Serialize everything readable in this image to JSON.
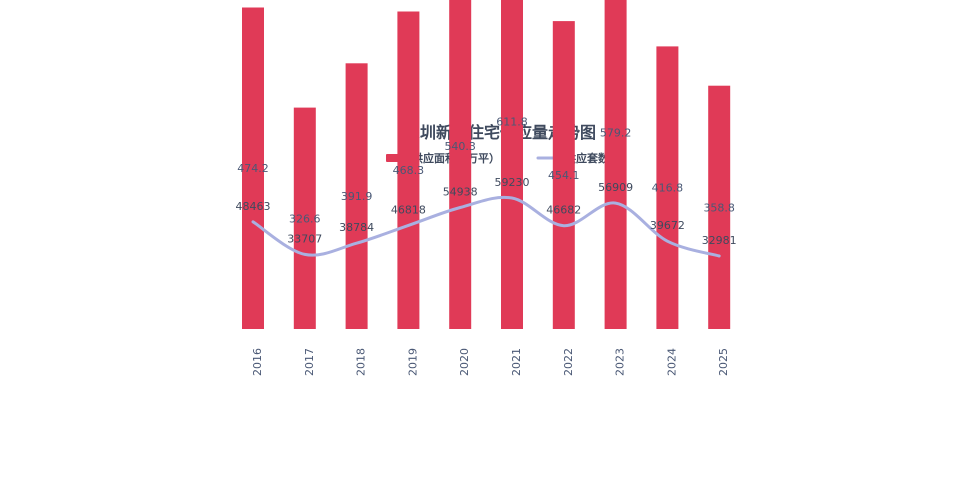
{
  "chart_data": {
    "type": "bar",
    "title": "深圳新房住宅供应量走势图",
    "categories": [
      "2016",
      "2017",
      "2018",
      "2019",
      "2020",
      "2021",
      "2022",
      "2023",
      "2024",
      "2025"
    ],
    "series": [
      {
        "name": "供应面积（万平）",
        "kind": "bar",
        "color": "#e03a57",
        "values": [
          474.2,
          326.6,
          391.9,
          468.3,
          540.3,
          611.8,
          454.1,
          579.2,
          416.8,
          358.8
        ],
        "labels": [
          "474.2",
          "326.6",
          "391.9",
          "468.3",
          "540.3",
          "611.8",
          "454.1",
          "579.2",
          "416.8",
          "358.8"
        ]
      },
      {
        "name": "供应套数",
        "kind": "line",
        "color": "#a9b0e0",
        "values": [
          48463,
          33707,
          38784,
          46818,
          54938,
          59230,
          46682,
          56909,
          39672,
          32981
        ],
        "labels": [
          "48463",
          "33707",
          "38784",
          "46818",
          "54938",
          "59230",
          "46682",
          "56909",
          "39672",
          "32981"
        ]
      }
    ],
    "legend": "top-center",
    "grid": false,
    "x_tick_rotation": "vertical"
  }
}
